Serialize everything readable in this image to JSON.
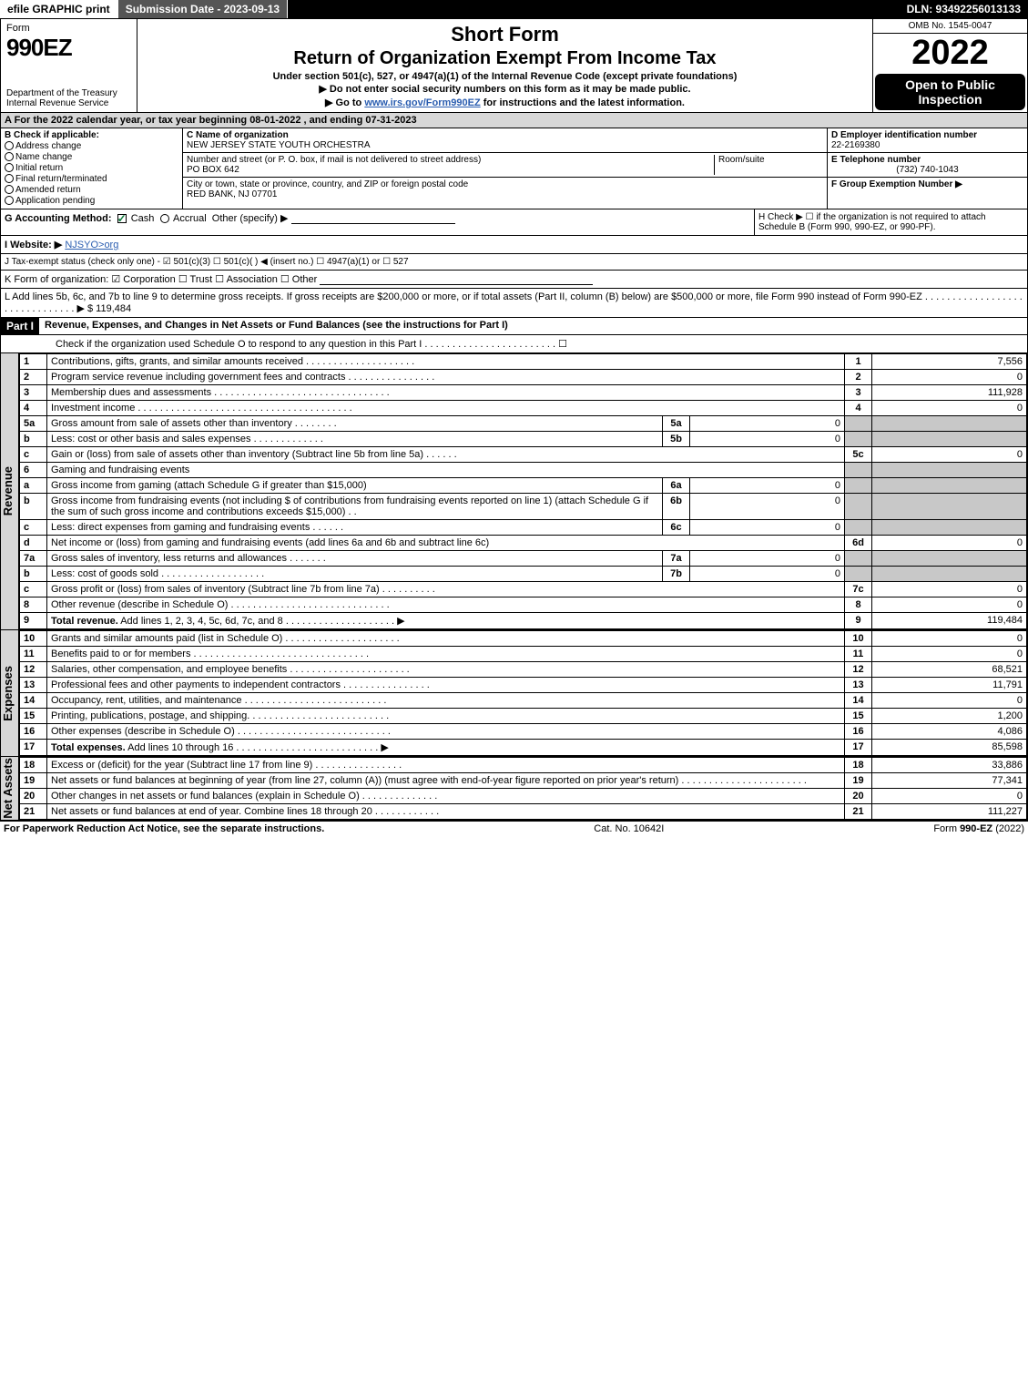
{
  "topbar": {
    "efile": "efile GRAPHIC print",
    "submission": "Submission Date - 2023-09-13",
    "dln": "DLN: 93492256013133"
  },
  "header": {
    "form_word": "Form",
    "form_no": "990EZ",
    "dept": "Department of the Treasury\nInternal Revenue Service",
    "title_short": "Short Form",
    "title_return": "Return of Organization Exempt From Income Tax",
    "sub1": "Under section 501(c), 527, or 4947(a)(1) of the Internal Revenue Code (except private foundations)",
    "sub2a": "▶ Do not enter social security numbers on this form as it may be made public.",
    "sub2b_pre": "▶ Go to ",
    "sub2b_link": "www.irs.gov/Form990EZ",
    "sub2b_post": " for instructions and the latest information.",
    "omb": "OMB No. 1545-0047",
    "year": "2022",
    "inspect": "Open to Public Inspection"
  },
  "lineA": "A  For the 2022 calendar year, or tax year beginning 08-01-2022 , and ending 07-31-2023",
  "colB": {
    "title": "B  Check if applicable:",
    "opts": [
      "Address change",
      "Name change",
      "Initial return",
      "Final return/terminated",
      "Amended return",
      "Application pending"
    ]
  },
  "colC": {
    "name_lbl": "C Name of organization",
    "name": "NEW JERSEY STATE YOUTH ORCHESTRA",
    "street_lbl": "Number and street (or P. O. box, if mail is not delivered to street address)",
    "street": "PO BOX 642",
    "room_lbl": "Room/suite",
    "city_lbl": "City or town, state or province, country, and ZIP or foreign postal code",
    "city": "RED BANK, NJ  07701"
  },
  "colD": {
    "ein_lbl": "D Employer identification number",
    "ein": "22-2169380",
    "tel_lbl": "E Telephone number",
    "tel": "(732) 740-1043",
    "grp_lbl": "F Group Exemption Number  ▶"
  },
  "lineG": {
    "label": "G Accounting Method:",
    "cash": "Cash",
    "accrual": "Accrual",
    "other": "Other (specify) ▶"
  },
  "lineH": "H  Check ▶  ☐  if the organization is not required to attach Schedule B (Form 990, 990-EZ, or 990-PF).",
  "lineI": {
    "label": "I Website: ▶",
    "val": "NJSYO>org"
  },
  "lineJ": "J Tax-exempt status (check only one) - ☑ 501(c)(3)  ☐ 501(c)(  ) ◀ (insert no.)  ☐ 4947(a)(1) or  ☐ 527",
  "lineK": "K Form of organization:  ☑ Corporation  ☐ Trust  ☐ Association  ☐ Other",
  "lineL": {
    "text": "L Add lines 5b, 6c, and 7b to line 9 to determine gross receipts. If gross receipts are $200,000 or more, or if total assets (Part II, column (B) below) are $500,000 or more, file Form 990 instead of Form 990-EZ . . . . . . . . . . . . . . . . . . . . . . . . . . . . . . . ▶ $",
    "val": "119,484"
  },
  "partI": {
    "hdr": "Part I",
    "title": "Revenue, Expenses, and Changes in Net Assets or Fund Balances (see the instructions for Part I)",
    "check": "Check if the organization used Schedule O to respond to any question in this Part I . . . . . . . . . . . . . . . . . . . . . . . . ☐"
  },
  "sections": {
    "revenue": "Revenue",
    "expenses": "Expenses",
    "netassets": "Net Assets"
  },
  "rows": [
    {
      "n": "1",
      "desc": "Contributions, gifts, grants, and similar amounts received . . . . . . . . . . . . . . . . . . . .",
      "idx": "1",
      "val": "7,556"
    },
    {
      "n": "2",
      "desc": "Program service revenue including government fees and contracts . . . . . . . . . . . . . . . .",
      "idx": "2",
      "val": "0"
    },
    {
      "n": "3",
      "desc": "Membership dues and assessments . . . . . . . . . . . . . . . . . . . . . . . . . . . . . . . .",
      "idx": "3",
      "val": "111,928"
    },
    {
      "n": "4",
      "desc": "Investment income . . . . . . . . . . . . . . . . . . . . . . . . . . . . . . . . . . . . . . .",
      "idx": "4",
      "val": "0"
    },
    {
      "n": "5a",
      "desc": "Gross amount from sale of assets other than inventory . . . . . . . .",
      "in_idx": "5a",
      "in_val": "0",
      "shade": true
    },
    {
      "n": "b",
      "desc": "Less: cost or other basis and sales expenses . . . . . . . . . . . . .",
      "in_idx": "5b",
      "in_val": "0",
      "shade": true
    },
    {
      "n": "c",
      "desc": "Gain or (loss) from sale of assets other than inventory (Subtract line 5b from line 5a) . . . . . .",
      "idx": "5c",
      "val": "0"
    },
    {
      "n": "6",
      "desc": "Gaming and fundraising events",
      "shade": true,
      "noval": true
    },
    {
      "n": "a",
      "desc": "Gross income from gaming (attach Schedule G if greater than $15,000)",
      "in_idx": "6a",
      "in_val": "0",
      "shade": true
    },
    {
      "n": "b",
      "desc": "Gross income from fundraising events (not including $                     of contributions from fundraising events reported on line 1) (attach Schedule G if the sum of such gross income and contributions exceeds $15,000)  . .",
      "in_idx": "6b",
      "in_val": "0",
      "shade": true
    },
    {
      "n": "c",
      "desc": "Less: direct expenses from gaming and fundraising events . . . . . .",
      "in_idx": "6c",
      "in_val": "0",
      "shade": true
    },
    {
      "n": "d",
      "desc": "Net income or (loss) from gaming and fundraising events (add lines 6a and 6b and subtract line 6c)",
      "idx": "6d",
      "val": "0"
    },
    {
      "n": "7a",
      "desc": "Gross sales of inventory, less returns and allowances . . . . . . .",
      "in_idx": "7a",
      "in_val": "0",
      "shade": true
    },
    {
      "n": "b",
      "desc": "Less: cost of goods sold  . . . . . . . . . . . . . . . . . . .",
      "in_idx": "7b",
      "in_val": "0",
      "shade": true
    },
    {
      "n": "c",
      "desc": "Gross profit or (loss) from sales of inventory (Subtract line 7b from line 7a) . . . . . . . . . .",
      "idx": "7c",
      "val": "0"
    },
    {
      "n": "8",
      "desc": "Other revenue (describe in Schedule O) . . . . . . . . . . . . . . . . . . . . . . . . . . . . .",
      "idx": "8",
      "val": "0"
    },
    {
      "n": "9",
      "desc": "Total revenue. Add lines 1, 2, 3, 4, 5c, 6d, 7c, and 8 . . . . . . . . . . . . . . . . . . . . ▶",
      "idx": "9",
      "val": "119,484",
      "bold": true
    }
  ],
  "exp_rows": [
    {
      "n": "10",
      "desc": "Grants and similar amounts paid (list in Schedule O) . . . . . . . . . . . . . . . . . . . . .",
      "idx": "10",
      "val": "0"
    },
    {
      "n": "11",
      "desc": "Benefits paid to or for members . . . . . . . . . . . . . . . . . . . . . . . . . . . . . . . .",
      "idx": "11",
      "val": "0"
    },
    {
      "n": "12",
      "desc": "Salaries, other compensation, and employee benefits . . . . . . . . . . . . . . . . . . . . . .",
      "idx": "12",
      "val": "68,521"
    },
    {
      "n": "13",
      "desc": "Professional fees and other payments to independent contractors . . . . . . . . . . . . . . . .",
      "idx": "13",
      "val": "11,791"
    },
    {
      "n": "14",
      "desc": "Occupancy, rent, utilities, and maintenance . . . . . . . . . . . . . . . . . . . . . . . . . .",
      "idx": "14",
      "val": "0"
    },
    {
      "n": "15",
      "desc": "Printing, publications, postage, and shipping. . . . . . . . . . . . . . . . . . . . . . . . . .",
      "idx": "15",
      "val": "1,200"
    },
    {
      "n": "16",
      "desc": "Other expenses (describe in Schedule O) . . . . . . . . . . . . . . . . . . . . . . . . . . . .",
      "idx": "16",
      "val": "4,086"
    },
    {
      "n": "17",
      "desc": "Total expenses. Add lines 10 through 16 . . . . . . . . . . . . . . . . . . . . . . . . . . ▶",
      "idx": "17",
      "val": "85,598",
      "bold": true
    }
  ],
  "na_rows": [
    {
      "n": "18",
      "desc": "Excess or (deficit) for the year (Subtract line 17 from line 9)  . . . . . . . . . . . . . . . .",
      "idx": "18",
      "val": "33,886"
    },
    {
      "n": "19",
      "desc": "Net assets or fund balances at beginning of year (from line 27, column (A)) (must agree with end-of-year figure reported on prior year's return) . . . . . . . . . . . . . . . . . . . . . . .",
      "idx": "19",
      "val": "77,341"
    },
    {
      "n": "20",
      "desc": "Other changes in net assets or fund balances (explain in Schedule O) . . . . . . . . . . . . . .",
      "idx": "20",
      "val": "0"
    },
    {
      "n": "21",
      "desc": "Net assets or fund balances at end of year. Combine lines 18 through 20 . . . . . . . . . . . .",
      "idx": "21",
      "val": "111,227"
    }
  ],
  "footer": {
    "left": "For Paperwork Reduction Act Notice, see the separate instructions.",
    "mid": "Cat. No. 10642I",
    "right": "Form 990-EZ (2022)"
  }
}
